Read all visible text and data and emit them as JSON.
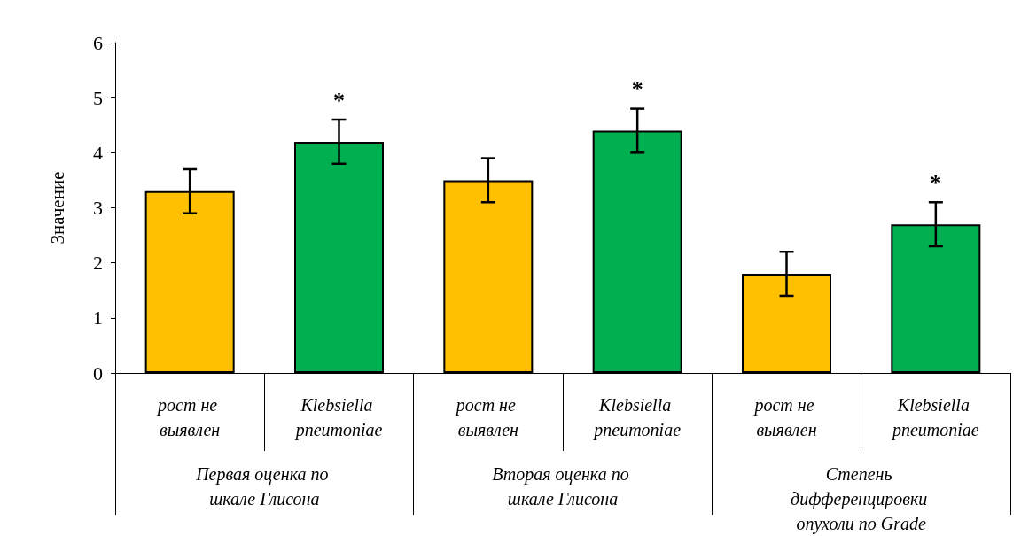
{
  "chart_data": {
    "type": "bar",
    "ylabel": "Значение",
    "categories": [
      "рост не выявлен",
      "Klebsiella pneumoniae",
      "рост не выявлен",
      "Klebsiella pneumoniae",
      "рост не выявлен",
      "Klebsiella pneumoniae"
    ],
    "values": [
      3.3,
      4.2,
      3.5,
      4.4,
      1.8,
      2.7
    ],
    "colors": [
      "#ffc000",
      "#00b050",
      "#ffc000",
      "#00b050",
      "#ffc000",
      "#00b050"
    ],
    "errors": [
      0.4,
      0.4,
      0.4,
      0.4,
      0.4,
      0.4
    ],
    "value_labels": [
      null,
      "*",
      null,
      "*",
      null,
      "*"
    ],
    "annotations": [
      "Первая оценка по шкале Глисона",
      "Вторая оценка по шкале Глисона",
      "Степень дифференцировки опухоли по Grade"
    ],
    "ylim": [
      0,
      6
    ],
    "yticks": [
      0,
      1,
      2,
      3,
      4,
      5,
      6
    ],
    "grid": false
  }
}
